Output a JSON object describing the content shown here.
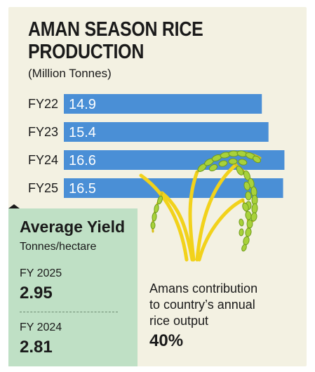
{
  "chart_data": {
    "type": "bar",
    "orientation": "horizontal",
    "title_line1": "AMAN SEASON RICE",
    "title_line2": "PRODUCTION",
    "unit": "(Million Tonnes)",
    "categories": [
      "FY22",
      "FY23",
      "FY24",
      "FY25"
    ],
    "values": [
      14.9,
      15.4,
      16.6,
      16.5
    ],
    "value_labels": [
      "14.9",
      "15.4",
      "16.6",
      "16.5"
    ],
    "bar_color": "#4a8fd6",
    "xlim": [
      0,
      17.0
    ]
  },
  "yield": {
    "title": "Average Yield",
    "unit": "Tonnes/hectare",
    "items": [
      {
        "year": "FY 2025",
        "value": "2.95"
      },
      {
        "year": "FY 2024",
        "value": "2.81"
      }
    ],
    "box_color": "#bfe0c5"
  },
  "contribution": {
    "text_line1": "Amans contribution",
    "text_line2": "to country’s annual",
    "text_line3": "rice output",
    "value": "40%"
  },
  "illustration": {
    "icon": "rice-plant-icon",
    "stalk_color": "#f2d21b",
    "grain_color": "#a8d23a"
  }
}
